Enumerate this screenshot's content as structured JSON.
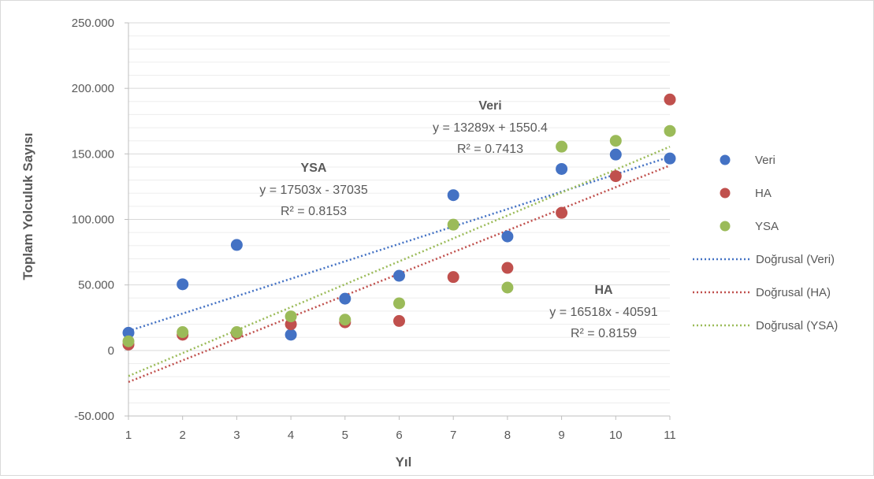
{
  "chart_data": {
    "type": "scatter",
    "xlabel": "Yıl",
    "ylabel": "Toplam Yolculuk Sayısı",
    "xlim": [
      1,
      11
    ],
    "ylim": [
      -50000,
      250000
    ],
    "x_ticks": [
      "1",
      "2",
      "3",
      "4",
      "5",
      "6",
      "7",
      "8",
      "9",
      "10",
      "11"
    ],
    "y_ticks": [
      {
        "value": -50000,
        "label": "-50.000"
      },
      {
        "value": 0,
        "label": "0"
      },
      {
        "value": 50000,
        "label": "50.000"
      },
      {
        "value": 100000,
        "label": "100.000"
      },
      {
        "value": 150000,
        "label": "150.000"
      },
      {
        "value": 200000,
        "label": "200.000"
      },
      {
        "value": 250000,
        "label": "250.000"
      }
    ],
    "grid": "horizontal major and minor",
    "legend_position": "right",
    "series": [
      {
        "name": "Veri",
        "color": "#4472c4",
        "x": [
          1,
          2,
          3,
          4,
          5,
          6,
          7,
          8,
          9,
          10,
          11
        ],
        "y": [
          13500,
          50500,
          80500,
          12000,
          39500,
          57000,
          118500,
          87000,
          138500,
          149500,
          146500
        ]
      },
      {
        "name": "HA",
        "color": "#c0504d",
        "x": [
          1,
          2,
          3,
          4,
          5,
          6,
          7,
          8,
          9,
          10,
          11
        ],
        "y": [
          4500,
          12000,
          13000,
          20000,
          21500,
          22500,
          56000,
          63000,
          105000,
          133000,
          191500
        ]
      },
      {
        "name": "YSA",
        "color": "#9bbb59",
        "x": [
          1,
          2,
          3,
          4,
          5,
          6,
          7,
          8,
          9,
          10,
          11
        ],
        "y": [
          7000,
          14000,
          14000,
          26000,
          23500,
          36000,
          96000,
          48000,
          155500,
          160000,
          167500
        ]
      }
    ],
    "trendlines": [
      {
        "name": "Doğrusal (Veri)",
        "color": "#4472c4",
        "slope": 13289,
        "intercept": 1550.4
      },
      {
        "name": "Doğrusal (HA)",
        "color": "#c0504d",
        "slope": 16518,
        "intercept": -40591
      },
      {
        "name": "Doğrusal (YSA)",
        "color": "#9bbb59",
        "slope": 17503,
        "intercept": -37035
      }
    ],
    "annotations": [
      {
        "id": "veri",
        "title": "Veri",
        "equation": "y = 13289x + 1550.4",
        "r2": "R² = 0.7413"
      },
      {
        "id": "ysa",
        "title": "YSA",
        "equation": "y = 17503x - 37035",
        "r2": "R² = 0.8153"
      },
      {
        "id": "ha",
        "title": "HA",
        "equation": "y = 16518x - 40591",
        "r2": "R² = 0.8159"
      }
    ]
  }
}
